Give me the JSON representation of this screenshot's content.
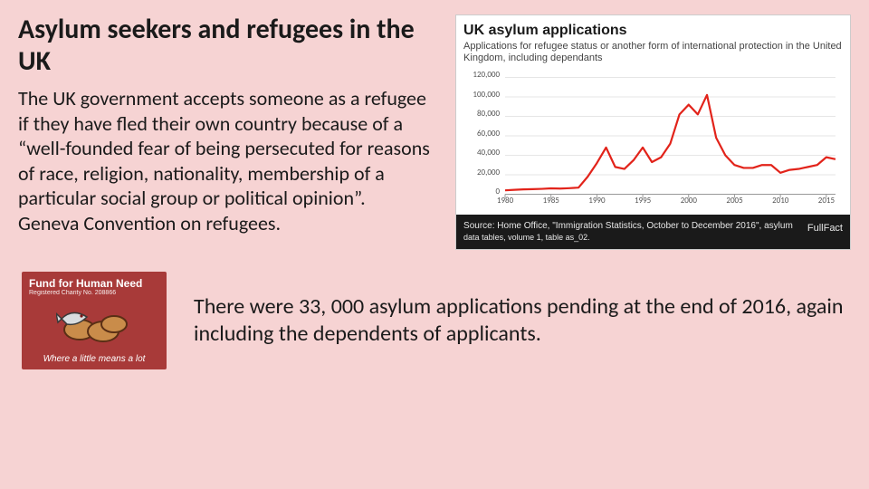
{
  "slide": {
    "background_color": "#f6d3d3",
    "title": "Asylum seekers and refugees in the UK",
    "body_text": "The UK government accepts someone as a refugee if they have fled their own country because of a “well-founded fear of being persecuted for reasons of race, religion, nationality, membership of a particular social group or political opinion”.\nGeneva Convention on refugees.",
    "bottom_text": "There were 33, 000 asylum applications pending at the end of 2016, again including the dependents of applicants."
  },
  "chart": {
    "type": "line",
    "title": "UK asylum applications",
    "subtitle": "Applications for refugee status or another form of international protection in the United Kingdom, including dependants",
    "source_line1": "Source: Home Office, \"Immigration Statistics, October to December 2016\", asylum",
    "source_line2": "data tables, volume 1, table as_02.",
    "source_brand": "FullFact",
    "background_color": "#ffffff",
    "line_color": "#e2231a",
    "line_width": 2.2,
    "grid_color": "#e6e6e6",
    "axis_color": "#999999",
    "xlim": [
      1980,
      2016
    ],
    "ylim": [
      0,
      120000
    ],
    "ytick_step": 20000,
    "xtick_step": 5,
    "yticks": [
      0,
      20000,
      40000,
      60000,
      80000,
      100000,
      120000
    ],
    "xticks": [
      1980,
      1985,
      1990,
      1995,
      2000,
      2005,
      2010,
      2015
    ],
    "label_fontsize": 9,
    "data": [
      {
        "x": 1980,
        "y": 4000
      },
      {
        "x": 1981,
        "y": 4500
      },
      {
        "x": 1982,
        "y": 5000
      },
      {
        "x": 1983,
        "y": 5200
      },
      {
        "x": 1984,
        "y": 5500
      },
      {
        "x": 1985,
        "y": 6000
      },
      {
        "x": 1986,
        "y": 5800
      },
      {
        "x": 1987,
        "y": 6200
      },
      {
        "x": 1988,
        "y": 6800
      },
      {
        "x": 1989,
        "y": 18000
      },
      {
        "x": 1990,
        "y": 32000
      },
      {
        "x": 1991,
        "y": 48000
      },
      {
        "x": 1992,
        "y": 28000
      },
      {
        "x": 1993,
        "y": 26000
      },
      {
        "x": 1994,
        "y": 35000
      },
      {
        "x": 1995,
        "y": 48000
      },
      {
        "x": 1996,
        "y": 33000
      },
      {
        "x": 1997,
        "y": 38000
      },
      {
        "x": 1998,
        "y": 52000
      },
      {
        "x": 1999,
        "y": 82000
      },
      {
        "x": 2000,
        "y": 92000
      },
      {
        "x": 2001,
        "y": 82000
      },
      {
        "x": 2002,
        "y": 102000
      },
      {
        "x": 2003,
        "y": 58000
      },
      {
        "x": 2004,
        "y": 40000
      },
      {
        "x": 2005,
        "y": 30000
      },
      {
        "x": 2006,
        "y": 27000
      },
      {
        "x": 2007,
        "y": 27000
      },
      {
        "x": 2008,
        "y": 30000
      },
      {
        "x": 2009,
        "y": 30000
      },
      {
        "x": 2010,
        "y": 22000
      },
      {
        "x": 2011,
        "y": 25000
      },
      {
        "x": 2012,
        "y": 26000
      },
      {
        "x": 2013,
        "y": 28000
      },
      {
        "x": 2014,
        "y": 30000
      },
      {
        "x": 2015,
        "y": 38000
      },
      {
        "x": 2016,
        "y": 36000
      }
    ]
  },
  "fund_card": {
    "background_color": "#a83a39",
    "title": "Fund for Human Need",
    "charity": "Registered Charity No. 208866",
    "slogan": "Where a little means a lot",
    "motif": {
      "bread_color": "#c98c4a",
      "bread_outline": "#5a2f15",
      "fish_body": "#d9dde0",
      "fish_outline": "#3a3a3a"
    }
  }
}
